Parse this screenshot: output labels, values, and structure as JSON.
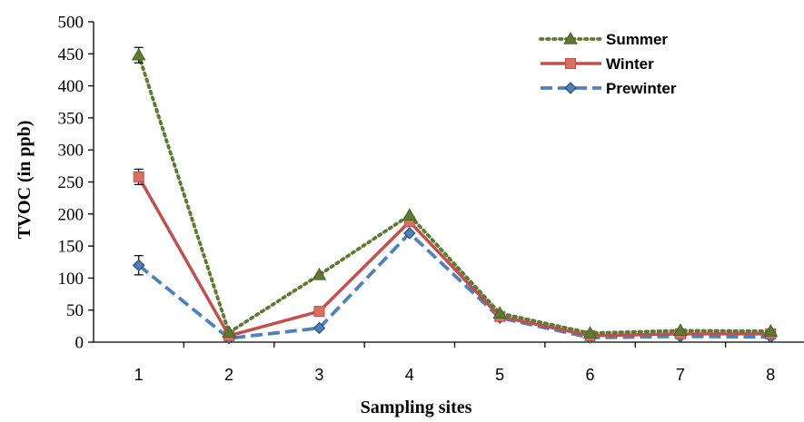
{
  "chart_data": {
    "type": "line",
    "xlabel": "Sampling sites",
    "ylabel": "TVOC (in ppb)",
    "categories": [
      "1",
      "2",
      "3",
      "4",
      "5",
      "6",
      "7",
      "8"
    ],
    "ylim": [
      0,
      500
    ],
    "yticks": [
      "0",
      "50",
      "100",
      "150",
      "200",
      "250",
      "300",
      "350",
      "400",
      "450",
      "500"
    ],
    "grid": false,
    "legend_position": "top-right",
    "series": [
      {
        "name": "Summer",
        "values": [
          448,
          15,
          105,
          198,
          45,
          14,
          18,
          17
        ],
        "error": [
          12,
          0,
          0,
          0,
          0,
          0,
          0,
          0
        ],
        "color": "#5E7A32",
        "line": "dotted",
        "marker": "triangle"
      },
      {
        "name": "Winter",
        "values": [
          258,
          10,
          48,
          188,
          40,
          10,
          13,
          13
        ],
        "error": [
          12,
          0,
          0,
          0,
          0,
          0,
          0,
          0
        ],
        "color": "#C0504D",
        "line": "solid",
        "marker": "square"
      },
      {
        "name": "Prewinter",
        "values": [
          120,
          6,
          22,
          170,
          38,
          7,
          9,
          8
        ],
        "error": [
          15,
          0,
          0,
          0,
          0,
          0,
          0,
          0
        ],
        "color": "#4F81BD",
        "line": "dashed",
        "marker": "diamond"
      }
    ]
  }
}
